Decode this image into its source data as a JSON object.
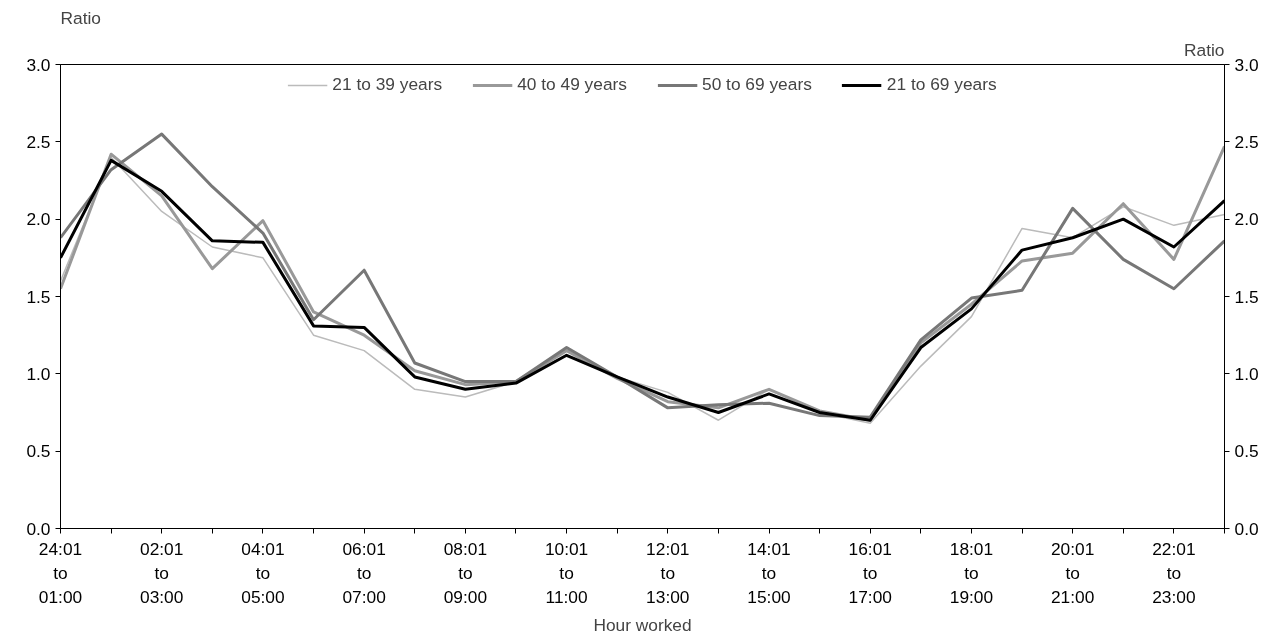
{
  "chart_data": {
    "type": "line",
    "xlabel": "Hour worked",
    "ylabel": "Ratio",
    "y2label": "Ratio",
    "categories": [
      "24:01\nto\n01:00",
      null,
      "02:01\nto\n03:00",
      null,
      "04:01\nto\n05:00",
      null,
      "06:01\nto\n07:00",
      null,
      "08:01\nto\n09:00",
      null,
      "10:01\nto\n11:00",
      null,
      "12:01\nto\n13:00",
      null,
      "14:01\nto\n15:00",
      null,
      "16:01\nto\n17:00",
      null,
      "18:01\nto\n19:00",
      null,
      "20:01\nto\n21:00",
      null,
      "22:01\nto\n23:00",
      null
    ],
    "ylim": [
      0,
      3
    ],
    "yticks": [
      {
        "value": 0,
        "label": "0.0"
      },
      0.5,
      {
        "value": 1,
        "label": "1.0"
      },
      1.5,
      {
        "value": 2,
        "label": "2.0"
      },
      2.5,
      {
        "value": 3,
        "label": "3.0"
      }
    ],
    "y2lim": [
      0,
      3
    ],
    "y2ticks": [
      {
        "value": 0,
        "label": "0.0"
      },
      0.5,
      {
        "value": 1,
        "label": "1.0"
      },
      1.5,
      {
        "value": 2,
        "label": "2.0"
      },
      2.5,
      {
        "value": 3,
        "label": "3.0"
      }
    ],
    "grid": false,
    "legend": "top",
    "line_style": "solid",
    "series": [
      {
        "name": "21 to 39 years",
        "color": "#bbbbbb",
        "values": [
          1.6,
          2.4,
          2.05,
          1.82,
          1.75,
          1.25,
          1.15,
          0.9,
          0.85,
          0.95,
          1.12,
          0.98,
          0.88,
          0.7,
          0.9,
          0.75,
          0.68,
          1.05,
          1.37,
          1.94,
          1.88,
          2.08,
          1.96,
          2.03
        ]
      },
      {
        "name": "40 to 49 years",
        "color": "#999999",
        "values": [
          1.55,
          2.42,
          2.15,
          1.68,
          1.99,
          1.4,
          1.25,
          1.02,
          0.93,
          0.95,
          1.15,
          0.97,
          0.82,
          0.78,
          0.9,
          0.76,
          0.7,
          1.2,
          1.45,
          1.73,
          1.78,
          2.1,
          1.74,
          2.47
        ]
      },
      {
        "name": "50 to 69 years",
        "color": "#777777",
        "values": [
          1.88,
          2.32,
          2.55,
          2.21,
          1.91,
          1.35,
          1.67,
          1.07,
          0.95,
          0.95,
          1.17,
          0.98,
          0.78,
          0.8,
          0.81,
          0.73,
          0.72,
          1.22,
          1.49,
          1.54,
          2.07,
          1.74,
          1.55,
          1.86
        ]
      },
      {
        "name": "21 to 69 years",
        "color": "#000000",
        "values": [
          1.75,
          2.38,
          2.18,
          1.86,
          1.85,
          1.31,
          1.3,
          0.98,
          0.9,
          0.94,
          1.12,
          0.98,
          0.85,
          0.75,
          0.87,
          0.75,
          0.7,
          1.17,
          1.42,
          1.8,
          1.88,
          2.0,
          1.82,
          2.12
        ]
      }
    ]
  }
}
